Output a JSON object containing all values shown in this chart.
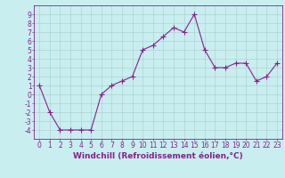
{
  "x": [
    0,
    1,
    2,
    3,
    4,
    5,
    6,
    7,
    8,
    9,
    10,
    11,
    12,
    13,
    14,
    15,
    16,
    17,
    18,
    19,
    20,
    21,
    22,
    23
  ],
  "y": [
    1,
    -2,
    -4,
    -4,
    -4,
    -4,
    0,
    1,
    1.5,
    2,
    5,
    5.5,
    6.5,
    7.5,
    7,
    9,
    5,
    3,
    3,
    3.5,
    3.5,
    1.5,
    2,
    3.5
  ],
  "line_color": "#882288",
  "marker": "+",
  "marker_size": 4,
  "bg_color": "#c8eef0",
  "grid_color": "#aacccc",
  "xlabel": "Windchill (Refroidissement éolien,°C)",
  "ylim": [
    -5,
    10
  ],
  "xlim": [
    -0.5,
    23.5
  ],
  "yticks": [
    -4,
    -3,
    -2,
    -1,
    0,
    1,
    2,
    3,
    4,
    5,
    6,
    7,
    8,
    9
  ],
  "xticks": [
    0,
    1,
    2,
    3,
    4,
    5,
    6,
    7,
    8,
    9,
    10,
    11,
    12,
    13,
    14,
    15,
    16,
    17,
    18,
    19,
    20,
    21,
    22,
    23
  ],
  "font_size": 5.5,
  "label_fontsize": 6.5,
  "tick_color": "#882288",
  "spine_color": "#882288"
}
